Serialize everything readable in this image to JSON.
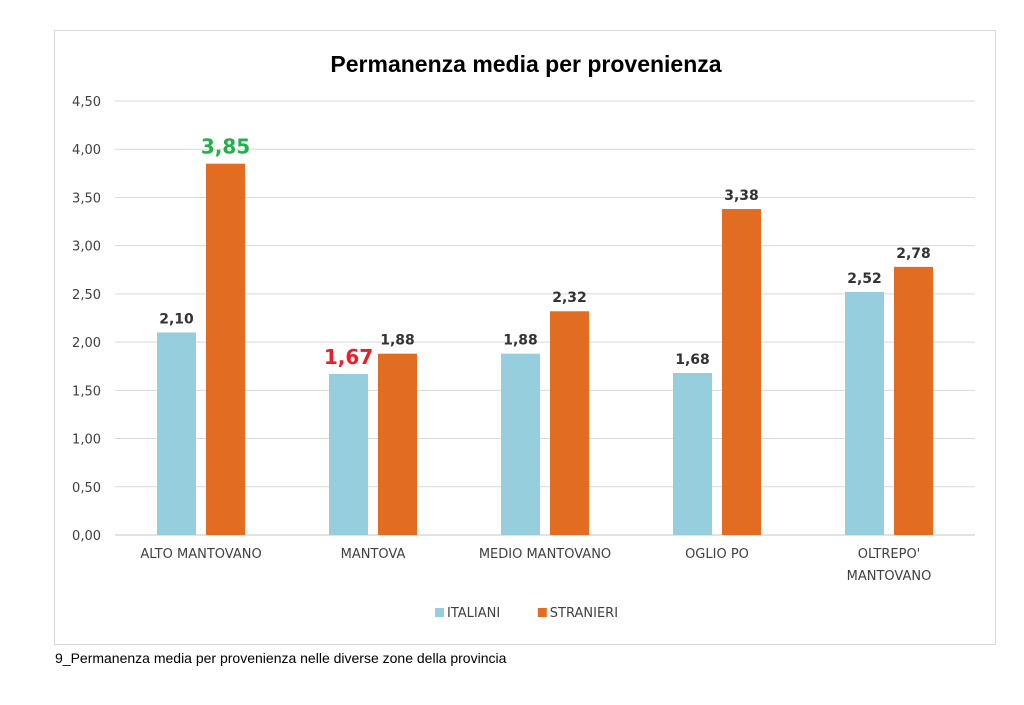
{
  "caption": "9_Permanenza media per provenienza nelle diverse zone della provincia",
  "chart_data": {
    "type": "bar",
    "title": "Permanenza media per provenienza",
    "xlabel": "",
    "ylabel": "",
    "categories": [
      [
        "ALTO MANTOVANO"
      ],
      [
        "MANTOVA"
      ],
      [
        "MEDIO MANTOVANO"
      ],
      [
        "OGLIO PO"
      ],
      [
        "OLTREPO'",
        "MANTOVANO"
      ]
    ],
    "series": [
      {
        "name": "ITALIANI",
        "color": "#97CEDE",
        "values": [
          2.1,
          1.67,
          1.88,
          1.68,
          2.52
        ],
        "labels": [
          "2,10",
          "1,67",
          "1,88",
          "1,68",
          "2,52"
        ],
        "label_colors": [
          "#333333",
          "#EE1C25",
          "#333333",
          "#333333",
          "#333333"
        ],
        "label_emphasis": [
          false,
          true,
          false,
          false,
          false
        ]
      },
      {
        "name": "STRANIERI",
        "color": "#E36C23",
        "values": [
          3.85,
          1.88,
          2.32,
          3.38,
          2.78
        ],
        "labels": [
          "3,85",
          "1,88",
          "2,32",
          "3,38",
          "2,78"
        ],
        "label_colors": [
          "#22B04B",
          "#333333",
          "#333333",
          "#333333",
          "#333333"
        ],
        "label_emphasis": [
          true,
          false,
          false,
          false,
          false
        ]
      }
    ],
    "ylim": [
      0,
      4.5
    ],
    "yticks": [
      0,
      0.5,
      1,
      1.5,
      2,
      2.5,
      3,
      3.5,
      4,
      4.5
    ],
    "ytick_labels": [
      "0,00",
      "0,50",
      "1,00",
      "1,50",
      "2,00",
      "2,50",
      "3,00",
      "3,50",
      "4,00",
      "4,50"
    ],
    "grid": true,
    "gridline_color": "#D9D9D9",
    "legend": "bottom-center"
  }
}
